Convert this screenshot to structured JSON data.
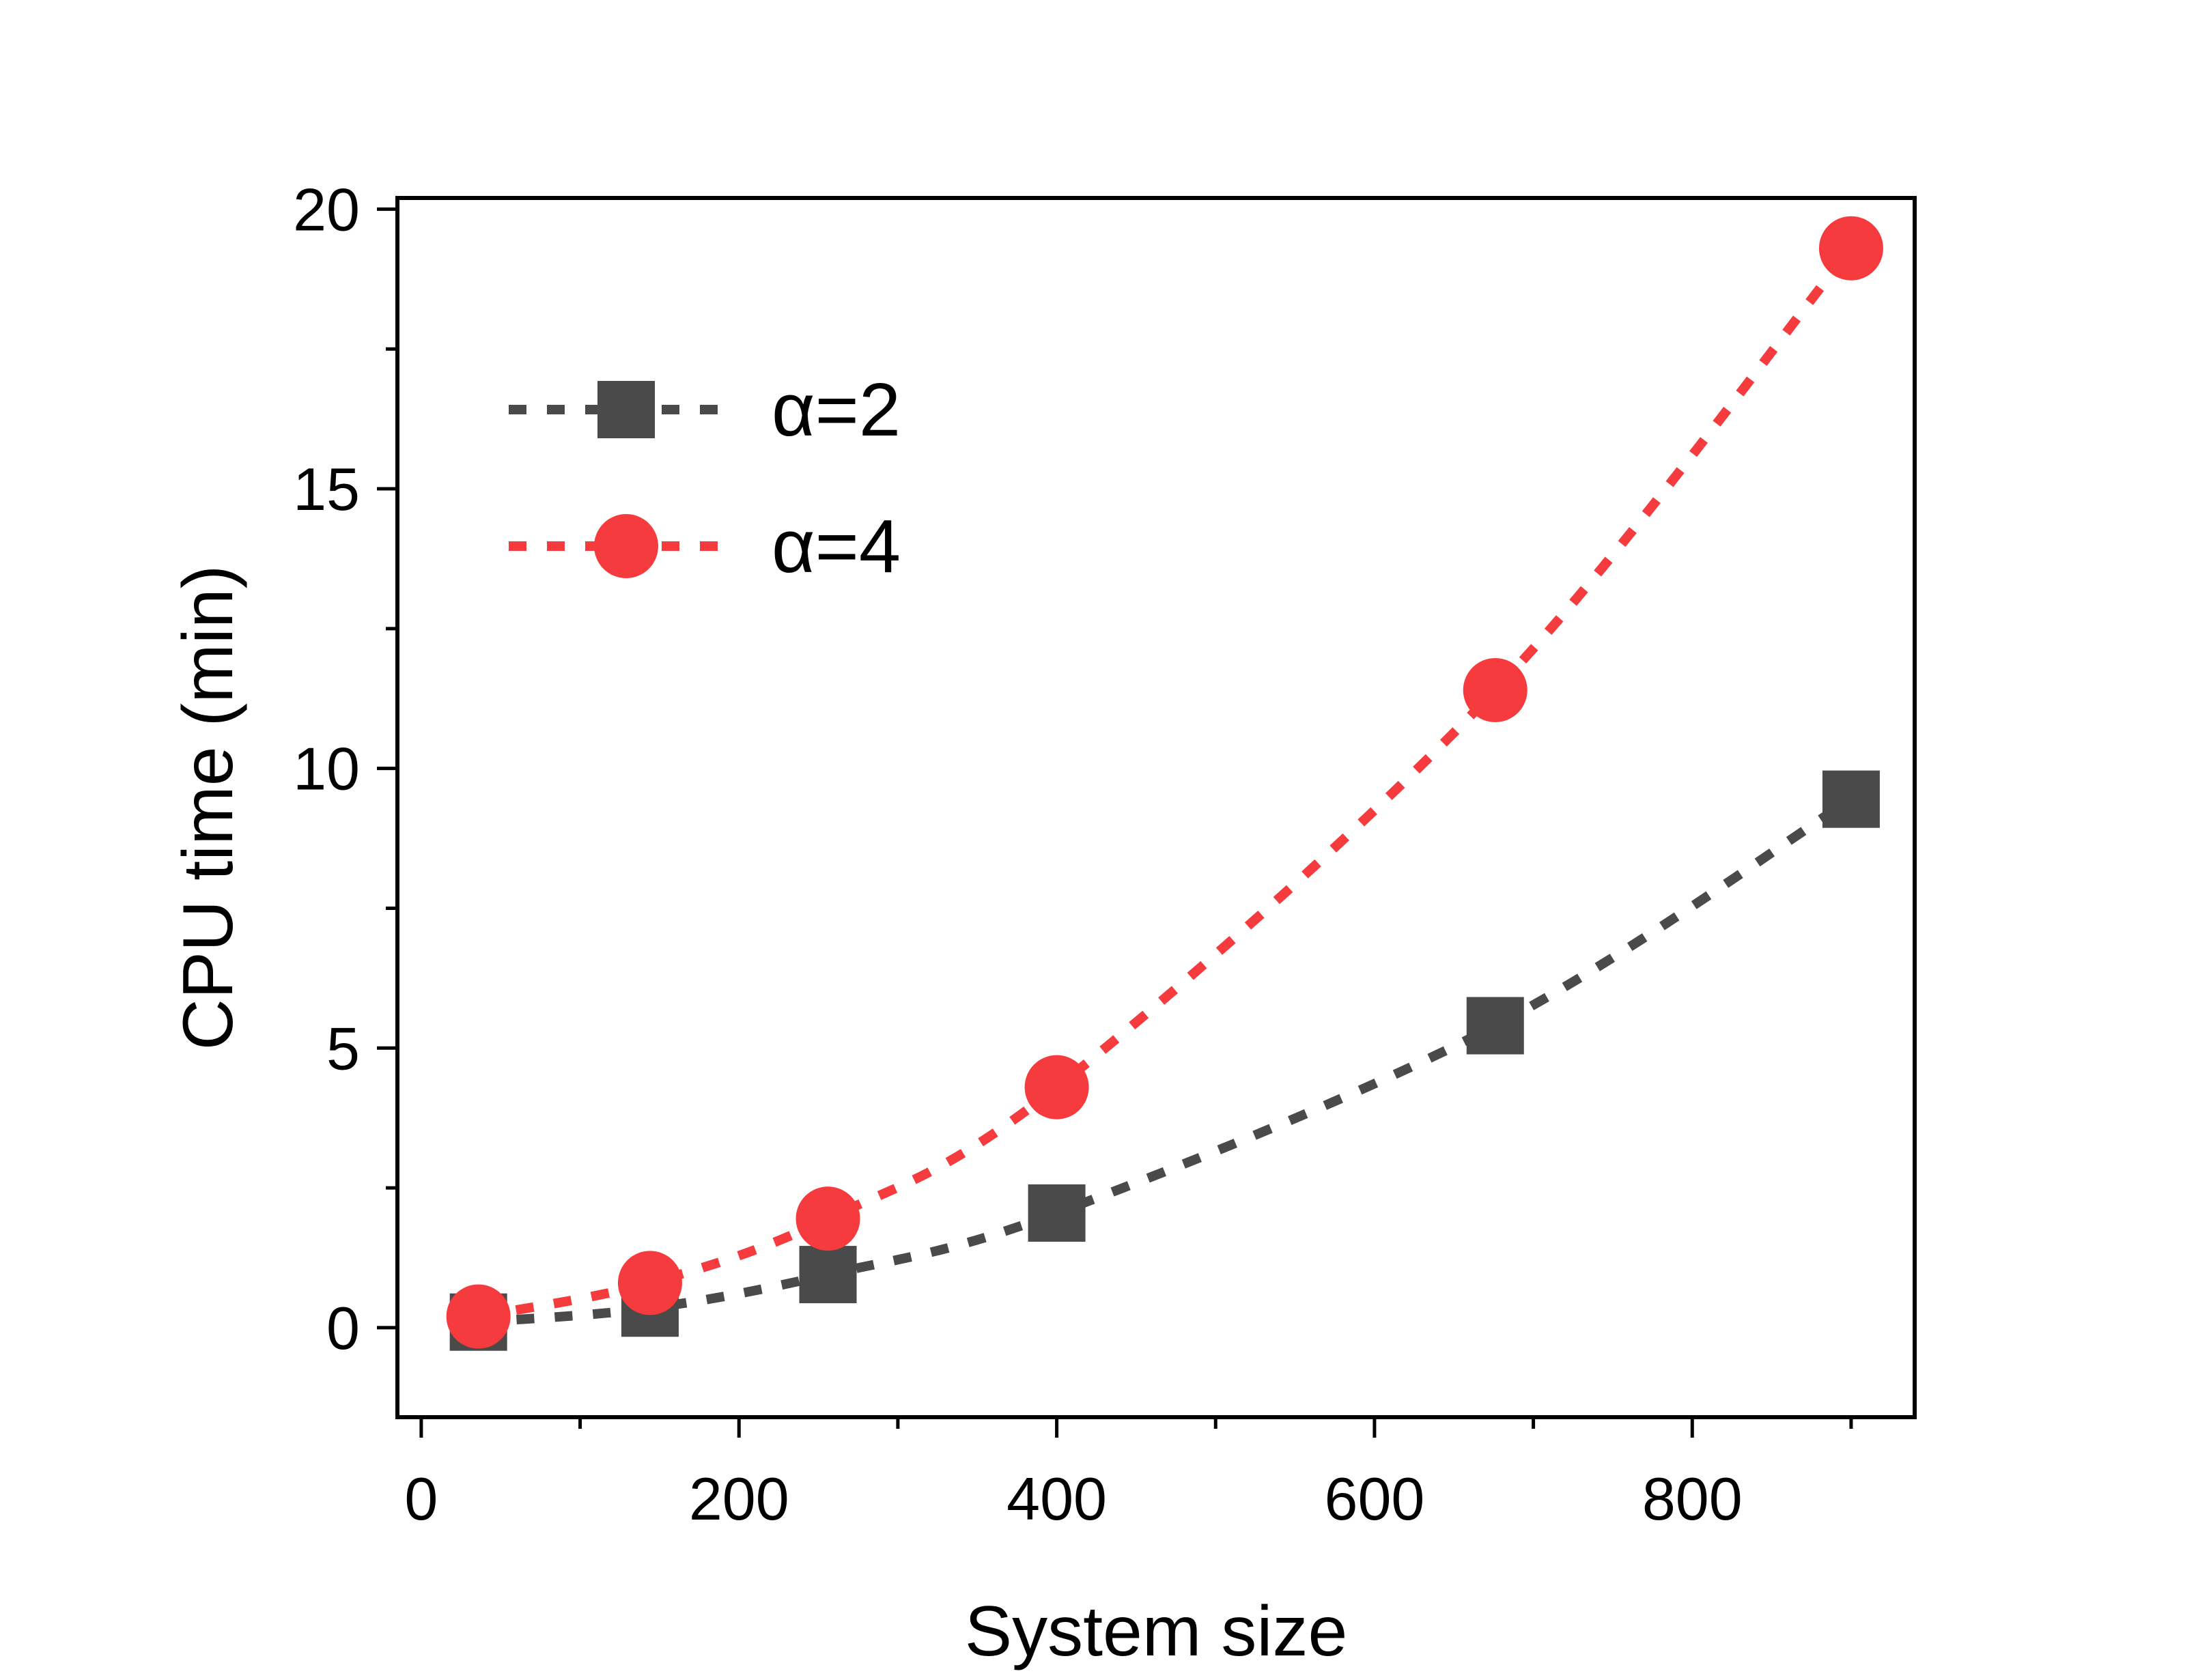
{
  "chart_data": {
    "type": "line",
    "title": "",
    "xlabel": "System size",
    "ylabel": "CPU time  (min)",
    "xlim": [
      -15,
      940
    ],
    "ylim": [
      -1.6,
      20.2
    ],
    "xticks": [
      0,
      200,
      400,
      600,
      800
    ],
    "xticks_minor": [
      100,
      300,
      500,
      700,
      900
    ],
    "yticks": [
      0,
      5,
      10,
      15,
      20
    ],
    "yticks_minor": [
      2.5,
      7.5,
      12.5,
      17.5
    ],
    "xtick_labels": [
      "0",
      "200",
      "400",
      "600",
      "800"
    ],
    "ytick_labels": [
      "0",
      "5",
      "10",
      "15",
      "20"
    ],
    "grid": false,
    "legend_position": "top-left",
    "series": [
      {
        "name": "α=2",
        "marker": "square",
        "line_style": "dashed",
        "color": "#4a4a4a",
        "x": [
          36,
          144,
          256,
          400,
          676,
          900
        ],
        "y": [
          0.1,
          0.35,
          0.95,
          2.05,
          5.4,
          9.45
        ]
      },
      {
        "name": "α=4",
        "marker": "circle",
        "line_style": "dashed",
        "color": "#f53b3d",
        "x": [
          36,
          144,
          256,
          400,
          676,
          900
        ],
        "y": [
          0.2,
          0.8,
          1.95,
          4.3,
          11.4,
          19.3
        ]
      }
    ]
  }
}
